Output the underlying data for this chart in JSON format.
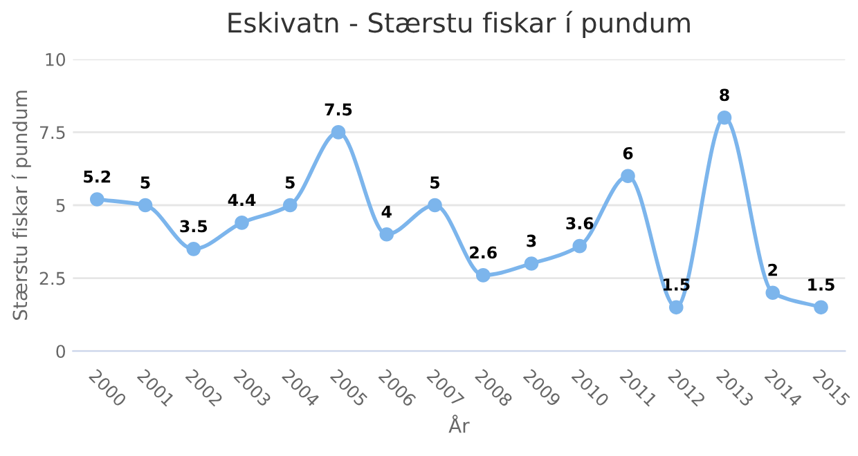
{
  "chart_data": {
    "type": "line",
    "title": "Eskivatn - Stærstu fiskar í pundum",
    "xlabel": "År",
    "ylabel": "Stærstu fiskar í pundum",
    "categories": [
      "2000",
      "2001",
      "2002",
      "2003",
      "2004",
      "2005",
      "2006",
      "2007",
      "2008",
      "2009",
      "2010",
      "2011",
      "2012",
      "2013",
      "2014",
      "2015"
    ],
    "series": [
      {
        "color": "#7cb5ec",
        "values": [
          5.2,
          5,
          3.5,
          4.4,
          5,
          7.5,
          4,
          5,
          2.6,
          3,
          3.6,
          6,
          1.5,
          8,
          2,
          1.5
        ]
      }
    ],
    "ylim": [
      0,
      10
    ],
    "yticks": [
      0,
      2.5,
      5,
      7.5,
      10
    ],
    "grid": "y",
    "marker": "circle",
    "line_style": "solid",
    "data_labels": true
  }
}
